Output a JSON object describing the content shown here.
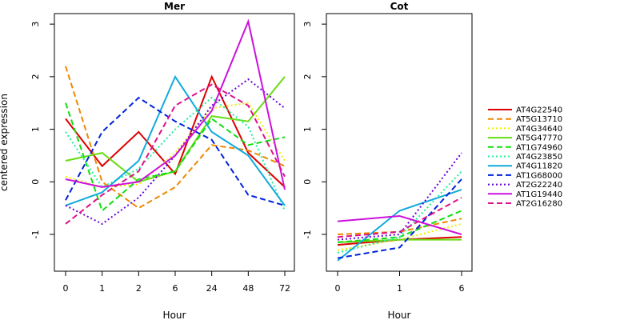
{
  "chart_data": [
    {
      "type": "line",
      "title": "Mer",
      "xlabel": "Hour",
      "ylabel": "centered expression",
      "categories": [
        "0",
        "1",
        "2",
        "6",
        "24",
        "48",
        "72"
      ],
      "ylim": [
        -1.7,
        3.2
      ],
      "yticks": [
        -1,
        0,
        1,
        2,
        3
      ],
      "grid": false,
      "series": [
        {
          "name": "AT4G22540",
          "values": [
            1.2,
            0.3,
            0.95,
            0.15,
            2.0,
            0.55,
            -0.1
          ]
        },
        {
          "name": "AT5G13710",
          "values": [
            2.2,
            0.0,
            -0.5,
            -0.1,
            0.7,
            0.6,
            0.3
          ]
        },
        {
          "name": "AT4G34640",
          "values": [
            0.1,
            -0.1,
            -0.05,
            0.55,
            1.4,
            1.5,
            0.4
          ]
        },
        {
          "name": "AT5G47770",
          "values": [
            0.4,
            0.55,
            0.0,
            0.2,
            1.25,
            1.15,
            2.0
          ]
        },
        {
          "name": "AT1G74960",
          "values": [
            1.5,
            -0.55,
            0.05,
            0.2,
            1.2,
            0.7,
            0.85
          ]
        },
        {
          "name": "AT4G23850",
          "values": [
            0.95,
            -0.1,
            0.25,
            1.0,
            1.6,
            1.05,
            -0.55
          ]
        },
        {
          "name": "AT4G11820",
          "values": [
            -0.45,
            -0.2,
            0.4,
            2.0,
            0.95,
            0.5,
            -0.45
          ]
        },
        {
          "name": "AT1G68000",
          "values": [
            -0.35,
            0.95,
            1.6,
            1.15,
            0.8,
            -0.25,
            -0.45
          ]
        },
        {
          "name": "AT2G22240",
          "values": [
            -0.45,
            -0.8,
            -0.3,
            0.5,
            1.45,
            1.95,
            1.4
          ]
        },
        {
          "name": "AT1G19440",
          "values": [
            0.05,
            -0.1,
            0.0,
            0.5,
            1.35,
            3.05,
            -0.15
          ]
        },
        {
          "name": "AT2G16280",
          "values": [
            -0.8,
            -0.25,
            0.2,
            1.45,
            1.85,
            1.45,
            0.1
          ]
        }
      ]
    },
    {
      "type": "line",
      "title": "Cot",
      "xlabel": "Hour",
      "ylabel": "",
      "categories": [
        "0",
        "1",
        "6"
      ],
      "ylim": [
        -1.7,
        3.2
      ],
      "yticks": [
        -1,
        0,
        1,
        2,
        3
      ],
      "grid": false,
      "series": [
        {
          "name": "AT4G22540",
          "values": [
            -1.2,
            -1.1,
            -1.05
          ]
        },
        {
          "name": "AT5G13710",
          "values": [
            -1.0,
            -0.95,
            -0.7
          ]
        },
        {
          "name": "AT4G34640",
          "values": [
            -1.3,
            -1.1,
            -0.8
          ]
        },
        {
          "name": "AT5G47770",
          "values": [
            -1.15,
            -1.1,
            -1.1
          ]
        },
        {
          "name": "AT1G74960",
          "values": [
            -1.15,
            -1.05,
            -0.55
          ]
        },
        {
          "name": "AT4G23850",
          "values": [
            -1.35,
            -1.05,
            0.2
          ]
        },
        {
          "name": "AT4G11820",
          "values": [
            -1.5,
            -0.55,
            -0.15
          ]
        },
        {
          "name": "AT1G68000",
          "values": [
            -1.45,
            -1.25,
            0.05
          ]
        },
        {
          "name": "AT2G22240",
          "values": [
            -1.1,
            -1.0,
            0.55
          ]
        },
        {
          "name": "AT1G19440",
          "values": [
            -0.75,
            -0.65,
            -1.0
          ]
        },
        {
          "name": "AT2G16280",
          "values": [
            -1.05,
            -0.95,
            -0.3
          ]
        }
      ]
    }
  ],
  "legend": {
    "position": "right",
    "items": [
      {
        "name": "AT4G22540",
        "color": "#dd0000",
        "dash": "solid"
      },
      {
        "name": "AT5G13710",
        "color": "#ee8800",
        "dash": "dashed"
      },
      {
        "name": "AT4G34640",
        "color": "#eeee00",
        "dash": "dotted"
      },
      {
        "name": "AT5G47770",
        "color": "#66dd11",
        "dash": "solid"
      },
      {
        "name": "AT1G74960",
        "color": "#11dd11",
        "dash": "dashed"
      },
      {
        "name": "AT4G23850",
        "color": "#22ee99",
        "dash": "dotted"
      },
      {
        "name": "AT4G11820",
        "color": "#11aadd",
        "dash": "solid"
      },
      {
        "name": "AT1G68000",
        "color": "#0022dd",
        "dash": "dashed"
      },
      {
        "name": "AT2G22240",
        "color": "#6600dd",
        "dash": "dotted"
      },
      {
        "name": "AT1G19440",
        "color": "#cc11dd",
        "dash": "solid"
      },
      {
        "name": "AT2G16280",
        "color": "#dd1188",
        "dash": "dashed"
      }
    ]
  }
}
